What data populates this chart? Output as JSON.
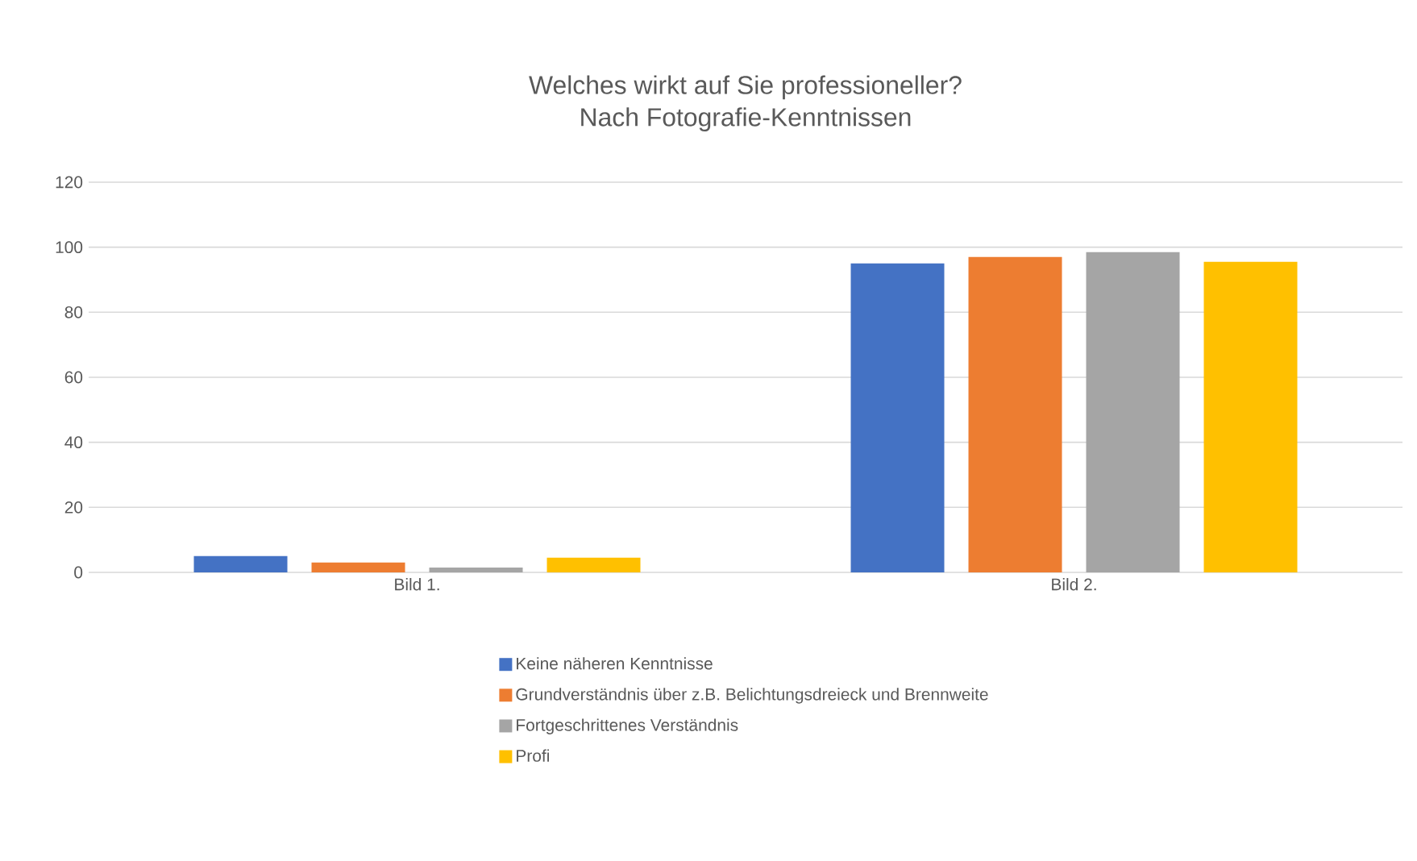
{
  "chart_data": {
    "type": "bar",
    "title": "Welches wirkt auf Sie professioneller?",
    "subtitle": "Nach Fotografie-Kenntnissen",
    "categories": [
      "Bild 1.",
      "Bild 2."
    ],
    "series": [
      {
        "name": "Keine näheren Kenntnisse",
        "color": "#4472c4",
        "values": [
          5,
          95
        ]
      },
      {
        "name": "Grundverständnis über z.B. Belichtungsdreieck und Brennweite",
        "color": "#ed7d31",
        "values": [
          3,
          97
        ]
      },
      {
        "name": "Fortgeschrittenes Verständnis",
        "color": "#a5a5a5",
        "values": [
          1.5,
          98.5
        ]
      },
      {
        "name": "Profi",
        "color": "#ffc000",
        "values": [
          4.5,
          95.5
        ]
      }
    ],
    "ylim": [
      0,
      120
    ],
    "yticks": [
      0,
      20,
      40,
      60,
      80,
      100,
      120
    ],
    "grid": "y",
    "legend": "bottom"
  }
}
